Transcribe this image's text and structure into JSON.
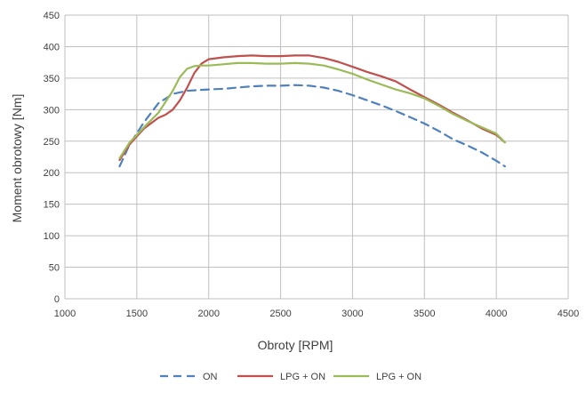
{
  "chart_data": {
    "type": "line",
    "title": "",
    "xlabel": "Obroty [RPM]",
    "ylabel": "Moment obrotowy [Nm]",
    "xlim": [
      1000,
      4500
    ],
    "ylim": [
      0,
      450
    ],
    "x_ticks": [
      1000,
      1500,
      2000,
      2500,
      3000,
      3500,
      4000,
      4500
    ],
    "y_ticks": [
      0,
      50,
      100,
      150,
      200,
      250,
      300,
      350,
      400,
      450
    ],
    "grid": true,
    "legend_position": "bottom",
    "series": [
      {
        "name": "ON",
        "color": "#4f81bd",
        "dash": "dashed",
        "x": [
          1380,
          1450,
          1550,
          1650,
          1750,
          1850,
          2000,
          2100,
          2200,
          2300,
          2400,
          2500,
          2600,
          2700,
          2800,
          2900,
          3000,
          3100,
          3200,
          3300,
          3400,
          3500,
          3600,
          3700,
          3800,
          3900,
          4000,
          4060
        ],
        "y": [
          210,
          245,
          280,
          310,
          325,
          330,
          332,
          333,
          335,
          337,
          338,
          338,
          339,
          338,
          335,
          330,
          323,
          315,
          307,
          298,
          288,
          278,
          266,
          253,
          243,
          232,
          219,
          210
        ]
      },
      {
        "name": "LPG + ON",
        "color": "#c0504d",
        "dash": "solid",
        "x": [
          1380,
          1450,
          1550,
          1650,
          1700,
          1750,
          1800,
          1850,
          1900,
          1950,
          2000,
          2100,
          2200,
          2300,
          2400,
          2500,
          2600,
          2700,
          2800,
          2900,
          3000,
          3100,
          3200,
          3300,
          3400,
          3500,
          3600,
          3700,
          3800,
          3900,
          4000,
          4060
        ],
        "y": [
          220,
          245,
          270,
          287,
          292,
          300,
          315,
          335,
          358,
          373,
          380,
          383,
          385,
          386,
          385,
          385,
          386,
          386,
          382,
          376,
          368,
          360,
          353,
          345,
          332,
          320,
          308,
          295,
          283,
          270,
          260,
          248
        ]
      },
      {
        "name": "LPG + ON",
        "color": "#9bbb59",
        "dash": "solid",
        "x": [
          1380,
          1450,
          1550,
          1650,
          1750,
          1800,
          1850,
          1900,
          1950,
          2000,
          2100,
          2200,
          2300,
          2400,
          2500,
          2600,
          2700,
          2800,
          2900,
          3000,
          3100,
          3200,
          3300,
          3400,
          3500,
          3600,
          3700,
          3800,
          3900,
          4000,
          4060
        ],
        "y": [
          223,
          248,
          272,
          295,
          330,
          352,
          365,
          369,
          370,
          370,
          372,
          374,
          374,
          373,
          373,
          374,
          373,
          370,
          364,
          357,
          348,
          340,
          332,
          326,
          318,
          306,
          293,
          282,
          272,
          262,
          248
        ]
      }
    ]
  }
}
